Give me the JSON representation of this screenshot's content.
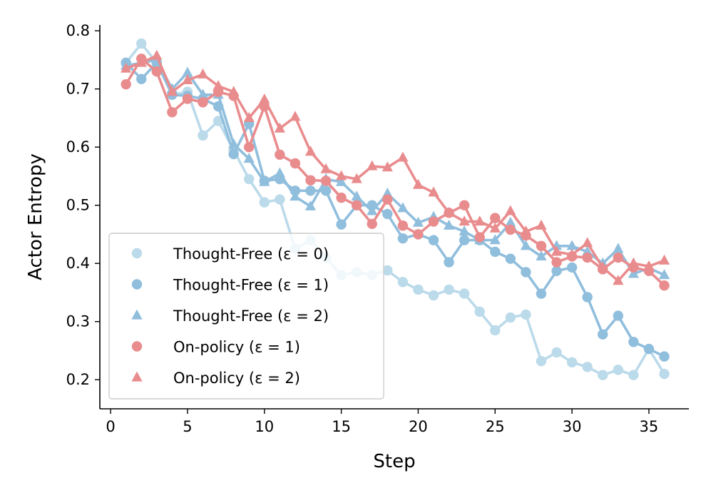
{
  "chart_data": {
    "type": "line",
    "xlabel": "Step",
    "ylabel": "Actor Entropy",
    "xlim": [
      -0.7,
      37.6
    ],
    "ylim": [
      0.15,
      0.81
    ],
    "xticks": [
      0,
      5,
      10,
      15,
      20,
      25,
      30,
      35
    ],
    "yticks": [
      0.2,
      0.3,
      0.4,
      0.5,
      0.6,
      0.7,
      0.8
    ],
    "grid": false,
    "legend_position": "lower-left",
    "series": [
      {
        "name": "Thought-Free (ε = 0)",
        "color": "#BBDAEA",
        "marker": "circle",
        "x": [
          1,
          2,
          3,
          4,
          5,
          6,
          7,
          8,
          9,
          10,
          11,
          12,
          13,
          14,
          15,
          16,
          17,
          18,
          19,
          20,
          21,
          22,
          23,
          24,
          25,
          26,
          27,
          28,
          29,
          30,
          31,
          32,
          33,
          34,
          35,
          36
        ],
        "values": [
          0.745,
          0.778,
          0.745,
          0.69,
          0.695,
          0.62,
          0.645,
          0.595,
          0.545,
          0.505,
          0.51,
          0.425,
          0.44,
          0.41,
          0.38,
          0.385,
          0.38,
          0.388,
          0.368,
          0.355,
          0.345,
          0.355,
          0.348,
          0.317,
          0.285,
          0.307,
          0.312,
          0.232,
          0.247,
          0.23,
          0.222,
          0.208,
          0.217,
          0.208,
          0.253,
          0.21
        ]
      },
      {
        "name": "Thought-Free (ε = 1)",
        "color": "#90BEDD",
        "marker": "circle",
        "x": [
          1,
          2,
          3,
          4,
          5,
          6,
          7,
          8,
          9,
          10,
          11,
          12,
          13,
          14,
          15,
          16,
          17,
          18,
          19,
          20,
          21,
          22,
          23,
          24,
          25,
          26,
          27,
          28,
          29,
          30,
          31,
          32,
          33,
          34,
          35,
          36
        ],
        "values": [
          0.745,
          0.717,
          0.745,
          0.69,
          0.688,
          0.683,
          0.67,
          0.588,
          0.64,
          0.542,
          0.545,
          0.525,
          0.525,
          0.525,
          0.467,
          0.5,
          0.5,
          0.485,
          0.443,
          0.45,
          0.44,
          0.402,
          0.44,
          0.44,
          0.42,
          0.408,
          0.385,
          0.348,
          0.387,
          0.393,
          0.342,
          0.278,
          0.31,
          0.265,
          0.253,
          0.24
        ]
      },
      {
        "name": "Thought-Free (ε = 2)",
        "color": "#90BEDD",
        "marker": "triangle",
        "x": [
          1,
          2,
          3,
          4,
          5,
          6,
          7,
          8,
          9,
          10,
          11,
          12,
          13,
          14,
          15,
          16,
          17,
          18,
          19,
          20,
          21,
          22,
          23,
          24,
          25,
          26,
          27,
          28,
          29,
          30,
          31,
          32,
          33,
          34,
          35,
          36
        ],
        "values": [
          0.74,
          0.745,
          0.75,
          0.7,
          0.728,
          0.69,
          0.69,
          0.605,
          0.58,
          0.54,
          0.555,
          0.515,
          0.498,
          0.545,
          0.54,
          0.515,
          0.49,
          0.52,
          0.495,
          0.47,
          0.48,
          0.465,
          0.455,
          0.44,
          0.44,
          0.47,
          0.43,
          0.412,
          0.43,
          0.43,
          0.42,
          0.4,
          0.425,
          0.382,
          0.392,
          0.38
        ]
      },
      {
        "name": "On-policy (ε = 1)",
        "color": "#E98C8E",
        "marker": "circle",
        "x": [
          1,
          2,
          3,
          4,
          5,
          6,
          7,
          8,
          9,
          10,
          11,
          12,
          13,
          14,
          15,
          16,
          17,
          18,
          19,
          20,
          21,
          22,
          23,
          24,
          25,
          26,
          27,
          28,
          29,
          30,
          31,
          32,
          33,
          34,
          35,
          36
        ],
        "values": [
          0.708,
          0.752,
          0.73,
          0.66,
          0.683,
          0.677,
          0.695,
          0.688,
          0.6,
          0.67,
          0.587,
          0.572,
          0.543,
          0.542,
          0.513,
          0.5,
          0.468,
          0.51,
          0.465,
          0.45,
          0.472,
          0.487,
          0.5,
          0.445,
          0.478,
          0.458,
          0.448,
          0.43,
          0.402,
          0.412,
          0.41,
          0.39,
          0.41,
          0.393,
          0.387,
          0.362
        ]
      },
      {
        "name": "On-policy (ε = 2)",
        "color": "#E98C8E",
        "marker": "triangle",
        "x": [
          1,
          2,
          3,
          4,
          5,
          6,
          7,
          8,
          9,
          10,
          11,
          12,
          13,
          14,
          15,
          16,
          17,
          18,
          19,
          20,
          21,
          22,
          23,
          24,
          25,
          26,
          27,
          28,
          29,
          30,
          31,
          32,
          33,
          34,
          35,
          36
        ],
        "values": [
          0.735,
          0.745,
          0.757,
          0.695,
          0.715,
          0.725,
          0.705,
          0.695,
          0.65,
          0.682,
          0.632,
          0.652,
          0.592,
          0.562,
          0.55,
          0.545,
          0.567,
          0.565,
          0.582,
          0.535,
          0.522,
          0.487,
          0.472,
          0.472,
          0.46,
          0.49,
          0.455,
          0.465,
          0.42,
          0.415,
          0.435,
          0.393,
          0.37,
          0.4,
          0.395,
          0.405
        ]
      }
    ]
  }
}
